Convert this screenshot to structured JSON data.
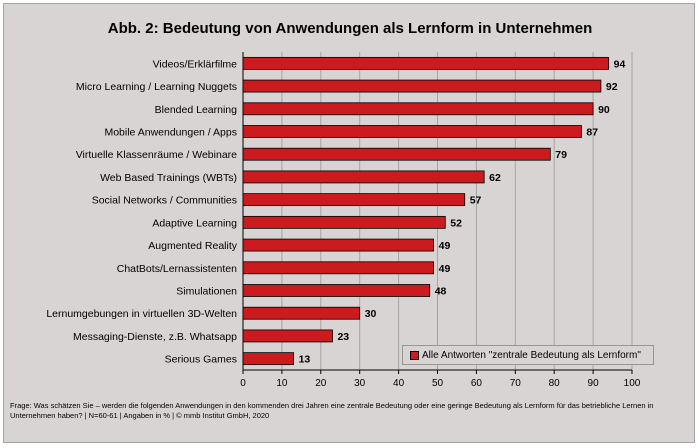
{
  "title": "Abb. 2: Bedeutung von Anwendungen als Lernform in Unternehmen",
  "footnote": "Frage: Was schätzen Sie – werden die folgenden Anwendungen in den kommenden drei Jahren eine zentrale Bedeutung oder eine geringe Bedeutung als Lernform für das betriebliche Lernen in Unternehmen haben? | N=60-61 | Angaben in % | © mmb Institut GmbH, 2020",
  "colors": {
    "bar": "#cc1b1e",
    "background": "#d9d4d4",
    "gridline": "#a8a3a3"
  },
  "chart_data": {
    "type": "bar",
    "orientation": "horizontal",
    "categories": [
      "Videos/Erklärfilme",
      "Micro Learning / Learning Nuggets",
      "Blended Learning",
      "Mobile Anwendungen / Apps",
      "Virtuelle Klassenräume / Webinare",
      "Web Based Trainings (WBTs)",
      "Social Networks / Communities",
      "Adaptive Learning",
      "Augmented Reality",
      "ChatBots/Lernassistenten",
      "Simulationen",
      "Lernumgebungen in virtuellen 3D-Welten",
      "Messaging-Dienste, z.B. Whatsapp",
      "Serious Games"
    ],
    "series": [
      {
        "name": "Alle Antworten \"zentrale Bedeutung als Lernform\"",
        "values": [
          94,
          92,
          90,
          87,
          79,
          62,
          57,
          52,
          49,
          49,
          48,
          30,
          23,
          13
        ]
      }
    ],
    "xlim": [
      0,
      100
    ],
    "xticks": [
      0,
      10,
      20,
      30,
      40,
      50,
      60,
      70,
      80,
      90,
      100
    ],
    "grid": true,
    "legend_position": "bottom-right"
  }
}
